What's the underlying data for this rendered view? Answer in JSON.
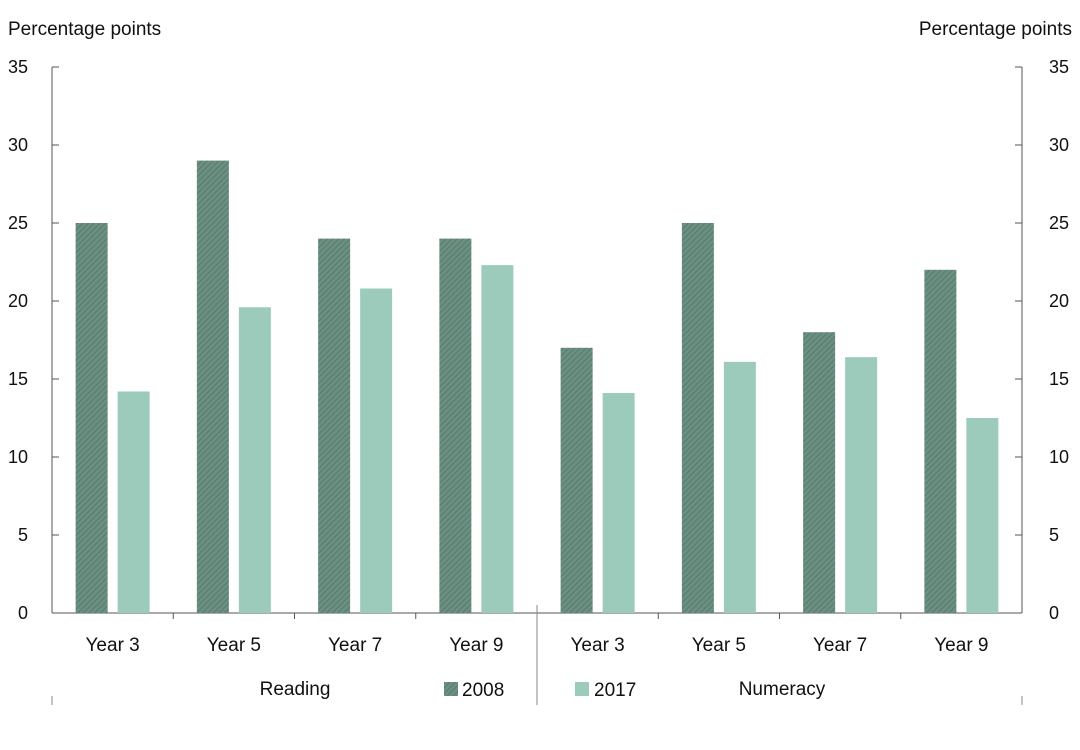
{
  "chart_data": {
    "type": "bar",
    "ylabel_left": "Percentage points",
    "ylabel_right": "Percentage points",
    "ylim": [
      0,
      35
    ],
    "yticks": [
      "0",
      "5",
      "10",
      "15",
      "20",
      "25",
      "30",
      "35"
    ],
    "groups": [
      {
        "label": "Reading",
        "categories": [
          "Year 3",
          "Year 5",
          "Year 7",
          "Year 9"
        ]
      },
      {
        "label": "Numeracy",
        "categories": [
          "Year 3",
          "Year 5",
          "Year 7",
          "Year 9"
        ]
      }
    ],
    "categories": [
      "Year 3",
      "Year 5",
      "Year 7",
      "Year 9",
      "Year 3",
      "Year 5",
      "Year 7",
      "Year 9"
    ],
    "series": [
      {
        "name": "2008",
        "color": "#6b8f80",
        "values": [
          25,
          29,
          24,
          24,
          17,
          25,
          18,
          22
        ]
      },
      {
        "name": "2017",
        "color": "#9ccbbb",
        "values": [
          14.2,
          19.6,
          20.8,
          22.3,
          14.1,
          16.1,
          16.4,
          12.5
        ]
      }
    ],
    "grid": false,
    "legend": "bottom-center"
  }
}
